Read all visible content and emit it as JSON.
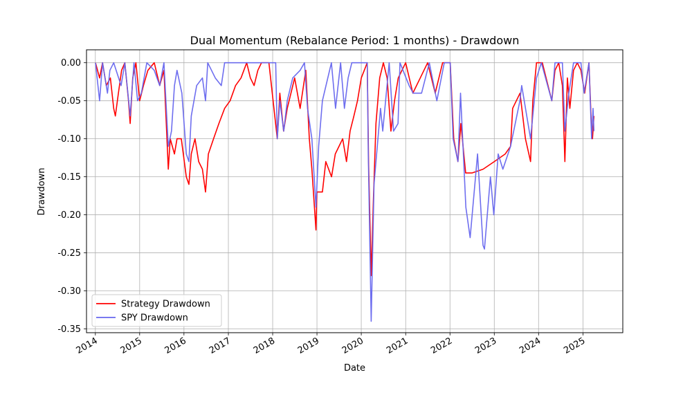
{
  "chart_data": {
    "type": "line",
    "title": "Dual Momentum (Rebalance Period: 1 months) - Drawdown",
    "xlabel": "Date",
    "ylabel": "Drawdown",
    "xlim": [
      "2013-10-20",
      "2025-11-25"
    ],
    "ylim": [
      -0.355,
      0.017
    ],
    "x_ticks": [
      "2014",
      "2015",
      "2016",
      "2017",
      "2018",
      "2019",
      "2020",
      "2021",
      "2022",
      "2023",
      "2024",
      "2025"
    ],
    "y_ticks": [
      "0.00",
      "-0.05",
      "-0.10",
      "-0.15",
      "-0.20",
      "-0.25",
      "-0.30",
      "-0.35"
    ],
    "grid": true,
    "legend_position": "lower-left",
    "series": [
      {
        "name": "Strategy Drawdown",
        "color": "#ff0000",
        "points": [
          [
            "2014-01-02",
            0.0
          ],
          [
            "2014-02-05",
            -0.02
          ],
          [
            "2014-03-01",
            0.0
          ],
          [
            "2014-04-01",
            -0.03
          ],
          [
            "2014-05-05",
            -0.02
          ],
          [
            "2014-06-01",
            -0.06
          ],
          [
            "2014-06-15",
            -0.07
          ],
          [
            "2014-07-10",
            -0.04
          ],
          [
            "2014-08-05",
            -0.01
          ],
          [
            "2014-09-01",
            0.0
          ],
          [
            "2014-10-01",
            -0.05
          ],
          [
            "2014-10-15",
            -0.08
          ],
          [
            "2014-11-05",
            -0.02
          ],
          [
            "2014-12-01",
            0.0
          ],
          [
            "2015-01-01",
            -0.05
          ],
          [
            "2015-02-01",
            -0.03
          ],
          [
            "2015-03-10",
            -0.01
          ],
          [
            "2015-05-01",
            0.0
          ],
          [
            "2015-06-15",
            -0.03
          ],
          [
            "2015-07-20",
            -0.01
          ],
          [
            "2015-08-25",
            -0.14
          ],
          [
            "2015-09-10",
            -0.1
          ],
          [
            "2015-10-15",
            -0.12
          ],
          [
            "2015-11-05",
            -0.1
          ],
          [
            "2015-12-10",
            -0.1
          ],
          [
            "2016-01-20",
            -0.15
          ],
          [
            "2016-02-11",
            -0.16
          ],
          [
            "2016-03-01",
            -0.12
          ],
          [
            "2016-04-01",
            -0.1
          ],
          [
            "2016-05-01",
            -0.13
          ],
          [
            "2016-06-01",
            -0.14
          ],
          [
            "2016-06-27",
            -0.17
          ],
          [
            "2016-07-20",
            -0.12
          ],
          [
            "2016-09-01",
            -0.1
          ],
          [
            "2016-10-15",
            -0.08
          ],
          [
            "2016-12-01",
            -0.06
          ],
          [
            "2017-01-15",
            -0.05
          ],
          [
            "2017-03-01",
            -0.03
          ],
          [
            "2017-04-15",
            -0.02
          ],
          [
            "2017-06-01",
            0.0
          ],
          [
            "2017-07-01",
            -0.02
          ],
          [
            "2017-08-01",
            -0.03
          ],
          [
            "2017-09-01",
            -0.01
          ],
          [
            "2017-10-01",
            0.0
          ],
          [
            "2017-12-01",
            0.0
          ],
          [
            "2018-02-08",
            -0.1
          ],
          [
            "2018-03-01",
            -0.04
          ],
          [
            "2018-04-01",
            -0.09
          ],
          [
            "2018-05-01",
            -0.06
          ],
          [
            "2018-07-01",
            -0.02
          ],
          [
            "2018-08-15",
            -0.06
          ],
          [
            "2018-10-01",
            -0.01
          ],
          [
            "2018-10-30",
            -0.1
          ],
          [
            "2018-11-20",
            -0.14
          ],
          [
            "2018-12-24",
            -0.22
          ],
          [
            "2019-01-01",
            -0.17
          ],
          [
            "2019-02-15",
            -0.17
          ],
          [
            "2019-03-15",
            -0.13
          ],
          [
            "2019-05-01",
            -0.15
          ],
          [
            "2019-06-01",
            -0.12
          ],
          [
            "2019-08-01",
            -0.1
          ],
          [
            "2019-09-01",
            -0.13
          ],
          [
            "2019-10-01",
            -0.09
          ],
          [
            "2019-11-01",
            -0.07
          ],
          [
            "2019-12-01",
            -0.05
          ],
          [
            "2020-01-01",
            -0.02
          ],
          [
            "2020-02-19",
            0.0
          ],
          [
            "2020-03-01",
            -0.13
          ],
          [
            "2020-03-23",
            -0.28
          ],
          [
            "2020-04-10",
            -0.18
          ],
          [
            "2020-05-01",
            -0.08
          ],
          [
            "2020-06-01",
            -0.02
          ],
          [
            "2020-07-01",
            0.0
          ],
          [
            "2020-08-01",
            -0.02
          ],
          [
            "2020-09-01",
            -0.09
          ],
          [
            "2020-10-01",
            -0.05
          ],
          [
            "2020-11-01",
            -0.02
          ],
          [
            "2021-01-01",
            0.0
          ],
          [
            "2021-03-01",
            -0.04
          ],
          [
            "2021-05-01",
            -0.02
          ],
          [
            "2021-07-01",
            0.0
          ],
          [
            "2021-09-01",
            -0.04
          ],
          [
            "2021-11-01",
            0.0
          ],
          [
            "2022-01-03",
            0.0
          ],
          [
            "2022-02-01",
            -0.1
          ],
          [
            "2022-03-07",
            -0.13
          ],
          [
            "2022-04-01",
            -0.08
          ],
          [
            "2022-05-10",
            -0.145
          ],
          [
            "2022-07-01",
            -0.145
          ],
          [
            "2022-10-01",
            -0.14
          ],
          [
            "2023-01-01",
            -0.13
          ],
          [
            "2023-04-01",
            -0.12
          ],
          [
            "2023-05-15",
            -0.11
          ],
          [
            "2023-06-01",
            -0.06
          ],
          [
            "2023-08-01",
            -0.04
          ],
          [
            "2023-09-15",
            -0.1
          ],
          [
            "2023-10-27",
            -0.13
          ],
          [
            "2023-11-15",
            -0.05
          ],
          [
            "2023-12-15",
            0.0
          ],
          [
            "2024-02-01",
            0.0
          ],
          [
            "2024-04-19",
            -0.05
          ],
          [
            "2024-05-15",
            -0.01
          ],
          [
            "2024-06-15",
            0.0
          ],
          [
            "2024-07-15",
            -0.03
          ],
          [
            "2024-08-05",
            -0.13
          ],
          [
            "2024-08-25",
            -0.02
          ],
          [
            "2024-09-15",
            -0.06
          ],
          [
            "2024-10-15",
            -0.01
          ],
          [
            "2024-11-15",
            0.0
          ],
          [
            "2024-12-15",
            -0.01
          ],
          [
            "2025-01-15",
            -0.04
          ],
          [
            "2025-02-19",
            0.0
          ],
          [
            "2025-03-13",
            -0.09
          ],
          [
            "2025-03-20",
            -0.1
          ],
          [
            "2025-04-01",
            -0.07
          ]
        ]
      },
      {
        "name": "SPY Drawdown",
        "color": "#6666ee",
        "points": [
          [
            "2014-01-02",
            0.0
          ],
          [
            "2014-02-05",
            -0.05
          ],
          [
            "2014-03-01",
            0.0
          ],
          [
            "2014-04-11",
            -0.04
          ],
          [
            "2014-05-01",
            -0.01
          ],
          [
            "2014-06-01",
            0.0
          ],
          [
            "2014-08-01",
            -0.03
          ],
          [
            "2014-09-01",
            0.0
          ],
          [
            "2014-10-15",
            -0.07
          ],
          [
            "2014-11-15",
            0.0
          ],
          [
            "2014-12-15",
            -0.05
          ],
          [
            "2015-01-15",
            -0.04
          ],
          [
            "2015-03-01",
            0.0
          ],
          [
            "2015-05-01",
            -0.01
          ],
          [
            "2015-06-15",
            -0.03
          ],
          [
            "2015-07-20",
            0.0
          ],
          [
            "2015-08-25",
            -0.11
          ],
          [
            "2015-09-20",
            -0.09
          ],
          [
            "2015-10-15",
            -0.03
          ],
          [
            "2015-11-05",
            -0.01
          ],
          [
            "2015-12-15",
            -0.04
          ],
          [
            "2016-01-20",
            -0.12
          ],
          [
            "2016-02-11",
            -0.13
          ],
          [
            "2016-03-01",
            -0.07
          ],
          [
            "2016-04-15",
            -0.03
          ],
          [
            "2016-06-01",
            -0.02
          ],
          [
            "2016-06-27",
            -0.05
          ],
          [
            "2016-07-15",
            0.0
          ],
          [
            "2016-09-15",
            -0.02
          ],
          [
            "2016-11-04",
            -0.03
          ],
          [
            "2016-12-01",
            0.0
          ],
          [
            "2017-06-01",
            0.0
          ],
          [
            "2017-12-01",
            0.0
          ],
          [
            "2018-01-26",
            0.0
          ],
          [
            "2018-02-08",
            -0.1
          ],
          [
            "2018-03-01",
            -0.05
          ],
          [
            "2018-04-02",
            -0.09
          ],
          [
            "2018-05-01",
            -0.05
          ],
          [
            "2018-06-15",
            -0.02
          ],
          [
            "2018-08-15",
            -0.01
          ],
          [
            "2018-09-20",
            0.0
          ],
          [
            "2018-10-15",
            -0.06
          ],
          [
            "2018-11-20",
            -0.1
          ],
          [
            "2018-12-24",
            -0.19
          ],
          [
            "2019-01-15",
            -0.11
          ],
          [
            "2019-02-15",
            -0.05
          ],
          [
            "2019-04-30",
            0.0
          ],
          [
            "2019-06-03",
            -0.06
          ],
          [
            "2019-07-15",
            0.0
          ],
          [
            "2019-08-15",
            -0.06
          ],
          [
            "2019-09-15",
            -0.02
          ],
          [
            "2019-10-15",
            0.0
          ],
          [
            "2020-02-19",
            0.0
          ],
          [
            "2020-02-28",
            -0.12
          ],
          [
            "2020-03-23",
            -0.34
          ],
          [
            "2020-04-15",
            -0.16
          ],
          [
            "2020-06-08",
            -0.06
          ],
          [
            "2020-06-26",
            -0.09
          ],
          [
            "2020-08-18",
            0.0
          ],
          [
            "2020-09-23",
            -0.09
          ],
          [
            "2020-10-30",
            -0.08
          ],
          [
            "2020-11-15",
            0.0
          ],
          [
            "2021-01-29",
            -0.03
          ],
          [
            "2021-03-04",
            -0.04
          ],
          [
            "2021-05-12",
            -0.04
          ],
          [
            "2021-07-15",
            0.0
          ],
          [
            "2021-09-15",
            -0.05
          ],
          [
            "2021-11-15",
            0.0
          ],
          [
            "2022-01-03",
            0.0
          ],
          [
            "2022-01-27",
            -0.1
          ],
          [
            "2022-03-08",
            -0.13
          ],
          [
            "2022-03-29",
            -0.04
          ],
          [
            "2022-05-12",
            -0.19
          ],
          [
            "2022-06-16",
            -0.23
          ],
          [
            "2022-08-16",
            -0.12
          ],
          [
            "2022-09-30",
            -0.24
          ],
          [
            "2022-10-12",
            -0.245
          ],
          [
            "2022-11-30",
            -0.15
          ],
          [
            "2022-12-28",
            -0.2
          ],
          [
            "2023-02-02",
            -0.12
          ],
          [
            "2023-03-13",
            -0.14
          ],
          [
            "2023-05-15",
            -0.11
          ],
          [
            "2023-07-31",
            -0.05
          ],
          [
            "2023-08-15",
            -0.03
          ],
          [
            "2023-10-27",
            -0.1
          ],
          [
            "2023-12-15",
            -0.02
          ],
          [
            "2024-01-24",
            0.0
          ],
          [
            "2024-04-19",
            -0.05
          ],
          [
            "2024-05-15",
            0.0
          ],
          [
            "2024-07-15",
            0.0
          ],
          [
            "2024-08-05",
            -0.09
          ],
          [
            "2024-09-06",
            -0.04
          ],
          [
            "2024-10-15",
            0.0
          ],
          [
            "2024-12-15",
            0.0
          ],
          [
            "2025-01-10",
            -0.04
          ],
          [
            "2025-02-19",
            0.0
          ],
          [
            "2025-03-13",
            -0.1
          ],
          [
            "2025-03-25",
            -0.06
          ],
          [
            "2025-04-01",
            -0.09
          ]
        ]
      }
    ]
  }
}
